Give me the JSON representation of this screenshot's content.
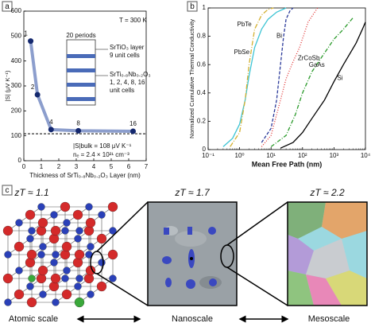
{
  "chart_data": [
    {
      "type": "scatter",
      "label": "a",
      "x_label": "Thickness of SrTi₀.₈Nb₀.₂O₃ Layer (nm)",
      "y_label": "|S| (μV K⁻¹)",
      "x": [
        0.39,
        0.78,
        1.56,
        3.12,
        6.25
      ],
      "values": [
        480,
        265,
        125,
        120,
        118
      ],
      "point_labels": [
        "1",
        "2",
        "4",
        "8",
        "16"
      ],
      "color": "#14286e",
      "line_color": "#7f93c8",
      "reference_line": 108,
      "xlim": [
        0,
        7
      ],
      "xticks": [
        0,
        1,
        2,
        3,
        4,
        5,
        6,
        7
      ],
      "ylim": [
        0,
        600
      ],
      "yticks": [
        0,
        100,
        200,
        300,
        400,
        500,
        600
      ],
      "annotations": [
        "T = 300 K",
        "20 periods",
        "SrTiO₃ layer",
        "9 unit cells",
        "SrTi₀.₈Nb₀.₂O₃",
        "1, 2, 4, 8, 16",
        "unit cells",
        "|S|bulk = 108 μV K⁻¹",
        "nₑ = 2.4 × 10²¹ cm⁻³"
      ]
    },
    {
      "type": "line",
      "label": "b",
      "log_x": true,
      "x_label": "Mean Free Path (nm)",
      "y_label": "Normalized Cumulative Thermal Conductivity",
      "xlim": [
        0.1,
        10000
      ],
      "xticks": [
        {
          "value": 0.1,
          "label": "10⁻¹"
        },
        {
          "value": 1,
          "label": "10⁰"
        },
        {
          "value": 10,
          "label": "10¹"
        },
        {
          "value": 100,
          "label": "10²"
        },
        {
          "value": 1000,
          "label": "10³"
        },
        {
          "value": 10000,
          "label": "10⁴"
        }
      ],
      "ylim": [
        0,
        1
      ],
      "yticks": [
        0,
        0.2,
        0.4,
        0.6,
        0.8,
        1
      ],
      "series": [
        {
          "name": "PbSe",
          "color": "#3cc4d4",
          "dash": "",
          "x": [
            0.3,
            0.6,
            1,
            1.5,
            2,
            3,
            5,
            8,
            15,
            30
          ],
          "values": [
            0.02,
            0.08,
            0.18,
            0.35,
            0.52,
            0.72,
            0.85,
            0.92,
            0.97,
            1
          ]
        },
        {
          "name": "PbTe",
          "color": "#d4b030",
          "dash": "6 2 1 2",
          "x": [
            0.5,
            1,
            1.5,
            2,
            3,
            5,
            8,
            12
          ],
          "values": [
            0.02,
            0.12,
            0.35,
            0.6,
            0.85,
            0.95,
            0.99,
            1
          ]
        },
        {
          "name": "Bi",
          "color": "#2b3a9a",
          "dash": "4 2",
          "x": [
            5,
            10,
            15,
            20,
            25,
            30,
            40,
            50
          ],
          "values": [
            0.05,
            0.15,
            0.35,
            0.6,
            0.8,
            0.92,
            0.98,
            1
          ]
        },
        {
          "name": "ZrCoSb",
          "color": "#e03030",
          "dash": "1 2",
          "x": [
            5,
            10,
            20,
            30,
            50,
            80,
            150,
            300
          ],
          "values": [
            0.02,
            0.1,
            0.35,
            0.5,
            0.62,
            0.72,
            0.9,
            1
          ]
        },
        {
          "name": "GaAs",
          "color": "#2a9a2a",
          "dash": "5 2 1 2",
          "x": [
            10,
            30,
            60,
            100,
            200,
            400,
            1000,
            2000,
            4000
          ],
          "values": [
            0.02,
            0.1,
            0.25,
            0.4,
            0.55,
            0.65,
            0.78,
            0.85,
            0.93
          ]
        },
        {
          "name": "Si",
          "color": "#000000",
          "dash": "",
          "x": [
            20,
            50,
            100,
            200,
            500,
            1000,
            2000,
            5000,
            8000,
            10000
          ],
          "values": [
            0.01,
            0.05,
            0.12,
            0.22,
            0.35,
            0.48,
            0.6,
            0.75,
            0.85,
            0.9
          ]
        }
      ]
    }
  ],
  "panel_c": {
    "label": "c",
    "zt": [
      "zT ≈ 1.1",
      "zT ≈ 1.7",
      "zT ≈ 2.2"
    ],
    "scales": [
      "Atomic scale",
      "Nanoscale",
      "Mesoscale"
    ]
  }
}
